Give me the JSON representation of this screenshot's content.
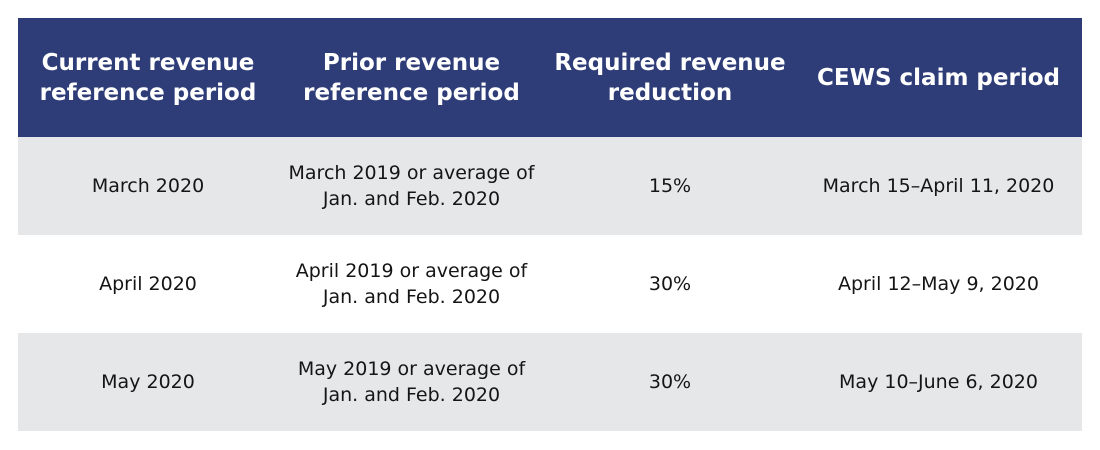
{
  "colors": {
    "header_background": "#2e3d78",
    "header_text": "#ffffff",
    "shaded_row": "#e6e7e9",
    "plain_row": "#ffffff",
    "body_text": "#151515"
  },
  "table": {
    "headers": [
      "Current revenue\nreference period",
      "Prior revenue\nreference period",
      "Required revenue\nreduction",
      "CEWS claim period"
    ],
    "rows": [
      [
        "March 2020",
        "March 2019 or average of\nJan. and Feb. 2020",
        "15%",
        "March 15–April 11, 2020"
      ],
      [
        "April 2020",
        "April 2019 or average of\nJan. and Feb. 2020",
        "30%",
        "April 12–May 9, 2020"
      ],
      [
        "May 2020",
        "May 2019 or average of\nJan. and Feb. 2020",
        "30%",
        "May 10–June 6, 2020"
      ]
    ]
  }
}
